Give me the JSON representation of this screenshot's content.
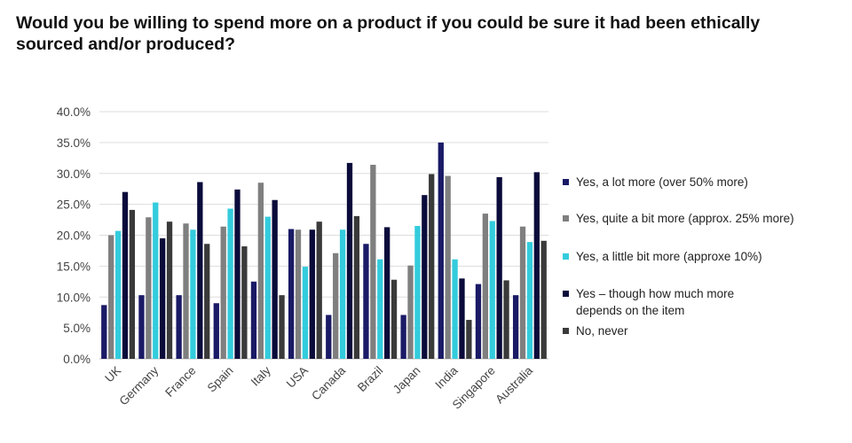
{
  "chart_data": {
    "type": "bar",
    "title": "Would you be willing to spend more on a product if you could be sure it had been ethically sourced and/or produced?",
    "categories": [
      "UK",
      "Germany",
      "France",
      "Spain",
      "Italy",
      "USA",
      "Canada",
      "Brazil",
      "Japan",
      "India",
      "Singapore",
      "Australia"
    ],
    "ylim": [
      0,
      40
    ],
    "yticks": [
      "0.0%",
      "5.0%",
      "10.0%",
      "15.0%",
      "20.0%",
      "25.0%",
      "30.0%",
      "35.0%",
      "40.0%"
    ],
    "grid": true,
    "legend_position": "right",
    "series": [
      {
        "name": "Yes, a lot more (over 50% more)",
        "color": "#1a1a66",
        "values": [
          8.7,
          10.3,
          10.3,
          9.0,
          12.5,
          21.0,
          7.1,
          18.6,
          7.1,
          35.0,
          12.1,
          10.3
        ]
      },
      {
        "name": "Yes, quite a bit more (approx. 25% more)",
        "color": "#7f7f7f",
        "values": [
          20.0,
          22.9,
          21.9,
          21.4,
          28.5,
          20.9,
          17.1,
          31.4,
          15.1,
          29.6,
          23.5,
          21.4
        ]
      },
      {
        "name": "Yes, a little bit more (approxe 10%)",
        "color": "#33ccdd",
        "values": [
          20.7,
          25.3,
          20.9,
          24.3,
          23.0,
          14.9,
          20.9,
          16.1,
          21.5,
          16.1,
          22.3,
          18.9
        ]
      },
      {
        "name": "Yes – though how much more depends on the item",
        "color": "#0b0b3b",
        "values": [
          27.0,
          19.5,
          28.6,
          27.4,
          25.7,
          20.9,
          31.7,
          21.3,
          26.5,
          13.0,
          29.4,
          30.2
        ]
      },
      {
        "name": "No, never",
        "color": "#3a3a3a",
        "values": [
          24.1,
          22.2,
          18.6,
          18.2,
          10.3,
          22.2,
          23.1,
          12.8,
          29.9,
          6.3,
          12.7,
          19.1
        ]
      }
    ]
  }
}
